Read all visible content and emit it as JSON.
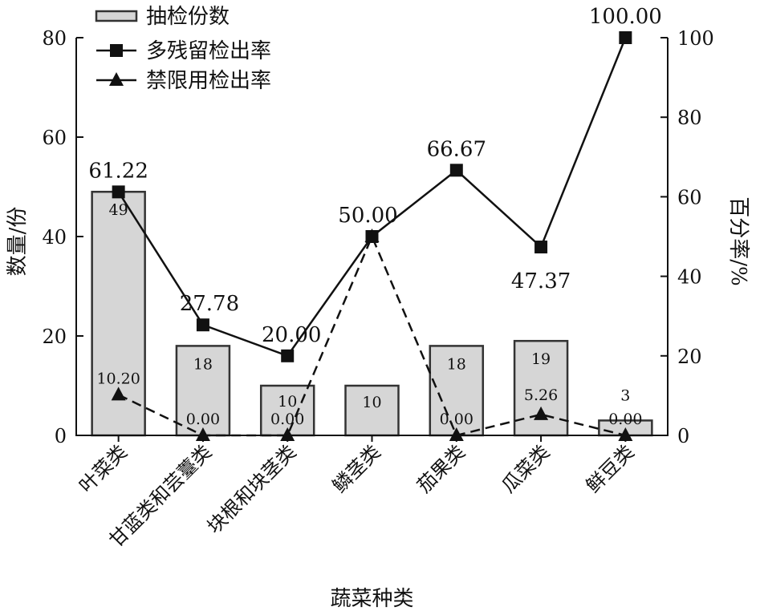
{
  "chart_data": {
    "type": "bar",
    "categories": [
      "叶菜类",
      "甘蓝类和芸薹类",
      "块根和块茎类",
      "鳞茎类",
      "茄果类",
      "瓜菜类",
      "鲜豆类"
    ],
    "xlabel": "蔬菜种类",
    "ylabel_left": "数量/份",
    "ylabel_right": "百分率/%",
    "ylim_left": [
      0,
      80
    ],
    "yticks_left": [
      0,
      20,
      40,
      60,
      80
    ],
    "ylim_right": [
      0,
      100
    ],
    "yticks_right": [
      0,
      20,
      40,
      60,
      80,
      100
    ],
    "grid": false,
    "legend_position": "top-left",
    "series": [
      {
        "name": "抽检份数",
        "type": "bar",
        "axis": "left",
        "values": [
          49,
          18,
          10,
          10,
          18,
          19,
          3
        ],
        "labels": [
          "49",
          "18",
          "10",
          "10",
          "18",
          "19",
          "3"
        ],
        "color": "#d6d6d6"
      },
      {
        "name": "多残留检出率",
        "type": "line",
        "axis": "right",
        "marker": "square",
        "line_style": "solid",
        "values": [
          61.22,
          27.78,
          20.0,
          50.0,
          66.67,
          47.37,
          100.0
        ],
        "labels": [
          "61.22",
          "27.78",
          "20.00",
          "50.00",
          "66.67",
          "47.37",
          "100.00"
        ]
      },
      {
        "name": "禁限用检出率",
        "type": "line",
        "axis": "right",
        "marker": "triangle",
        "line_style": "dashed",
        "values": [
          10.2,
          0.0,
          0.0,
          50.0,
          0.0,
          5.26,
          0.0
        ],
        "labels": [
          "10.20",
          "0.00",
          "0.00",
          "",
          "0.00",
          "5.26",
          "0.00"
        ]
      }
    ]
  }
}
